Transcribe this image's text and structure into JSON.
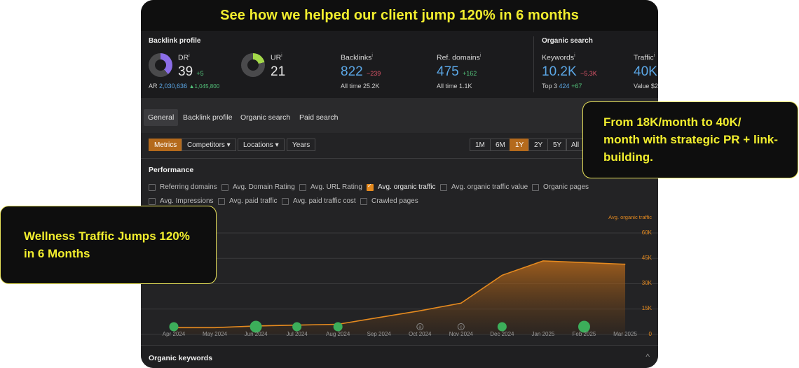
{
  "banner": {
    "title": "See how we helped our client jump 120% in 6 months"
  },
  "backlink_profile": {
    "title": "Backlink profile",
    "dr": {
      "label": "DR",
      "value": "39",
      "delta": "+5",
      "ring_fraction": 0.39,
      "color": "#8b6de8"
    },
    "ar": {
      "label": "AR",
      "value": "2,030,636",
      "delta": "▲1,045,800"
    },
    "ur": {
      "label": "UR",
      "value": "21",
      "ring_fraction": 0.21,
      "color": "#a4d94a"
    },
    "backlinks": {
      "label": "Backlinks",
      "value": "822",
      "delta": "−239",
      "alltime_label": "All time",
      "alltime_value": "25.2K"
    },
    "ref_domains": {
      "label": "Ref. domains",
      "value": "475",
      "delta": "+162",
      "alltime_label": "All time",
      "alltime_value": "1.1K"
    }
  },
  "organic_search": {
    "title": "Organic search",
    "keywords": {
      "label": "Keywords",
      "value": "10.2K",
      "delta": "−5.3K",
      "top3_label": "Top 3",
      "top3_value": "424",
      "top3_delta": "+67"
    },
    "traffic": {
      "label": "Traffic",
      "value": "40K",
      "value_label": "Value",
      "value_value": "$2"
    }
  },
  "tabs": [
    {
      "label": "General",
      "active": true
    },
    {
      "label": "Backlink profile"
    },
    {
      "label": "Organic search"
    },
    {
      "label": "Paid search"
    }
  ],
  "filters": {
    "metrics": "Metrics",
    "competitors": "Competitors ▾",
    "locations": "Locations ▾",
    "years": "Years"
  },
  "ranges": [
    "1M",
    "6M",
    "1Y",
    "2Y",
    "5Y",
    "All"
  ],
  "active_range": "1Y",
  "performance": {
    "title": "Performance",
    "checkboxes_row1": [
      {
        "label": "Referring domains",
        "checked": false
      },
      {
        "label": "Avg. Domain Rating",
        "checked": false
      },
      {
        "label": "Avg. URL Rating",
        "checked": false
      },
      {
        "label": "Avg. organic traffic",
        "checked": true
      },
      {
        "label": "Avg. organic traffic value",
        "checked": false
      },
      {
        "label": "Organic pages",
        "checked": false
      }
    ],
    "checkboxes_row2": [
      {
        "label": "Avg. Impressions",
        "checked": false
      },
      {
        "label": "Avg. paid traffic",
        "checked": false
      },
      {
        "label": "Avg. paid traffic cost",
        "checked": false
      },
      {
        "label": "Crawled pages",
        "checked": false
      }
    ]
  },
  "chart_data": {
    "type": "area",
    "series": [
      {
        "name": "Avg. organic traffic",
        "values": [
          4000,
          4000,
          5000,
          5500,
          6000,
          10000,
          14000,
          18500,
          35000,
          43500,
          42500,
          41500
        ]
      }
    ],
    "categories": [
      "Apr 2024",
      "May 2024",
      "Jun 2024",
      "Jul 2024",
      "Aug 2024",
      "Sep 2024",
      "Oct 2024",
      "Nov 2024",
      "Dec 2024",
      "Jan 2025",
      "Feb 2025",
      "Mar 2025"
    ],
    "yticks": [
      "60K",
      "45K",
      "30K",
      "15K",
      "0"
    ],
    "ylim": [
      0,
      60000
    ],
    "color": "#e58a1f",
    "markers": [
      {
        "x": "Apr 2024",
        "type": "dot"
      },
      {
        "x": "Jun 2024",
        "type": "dot-large"
      },
      {
        "x": "Jul 2024",
        "type": "dot"
      },
      {
        "x": "Aug 2024",
        "type": "dot"
      },
      {
        "x": "Oct 2024",
        "type": "ring",
        "label": "a"
      },
      {
        "x": "Nov 2024",
        "type": "ring",
        "label": "c"
      },
      {
        "x": "Dec 2024",
        "type": "dot"
      },
      {
        "x": "Feb 2025",
        "type": "dot-large"
      }
    ]
  },
  "organic_keywords": {
    "title": "Organic keywords",
    "chevron": "^"
  },
  "callouts": {
    "right": "From 18K/month to 40K/ month with strategic PR + link-building.",
    "left": "Wellness Traffic Jumps 120% in 6 Months"
  }
}
